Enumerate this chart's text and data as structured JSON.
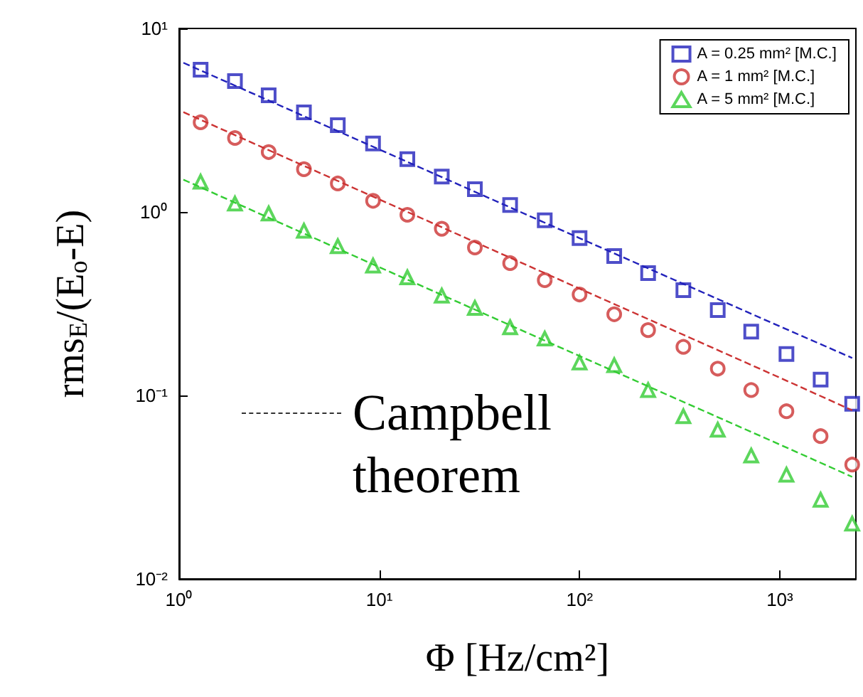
{
  "chart_data": {
    "type": "scatter",
    "xlabel": "Φ [Hz/cm²]",
    "ylabel": "rms$_{E}$/(E$_{o}$-E)",
    "log": "xy",
    "grid": false,
    "legend": "top right",
    "xlim": [
      1,
      2400
    ],
    "ylim": [
      0.01,
      10
    ],
    "xticks": [
      {
        "value": 1,
        "label": "10⁰"
      },
      {
        "value": 10,
        "label": "10¹"
      },
      {
        "value": 100,
        "label": "10²"
      },
      {
        "value": 1000,
        "label": "10³"
      }
    ],
    "yticks": [
      {
        "value": 0.01,
        "label": "10⁻²"
      },
      {
        "value": 0.1,
        "label": "10⁻¹"
      },
      {
        "value": 1,
        "label": "10⁰"
      },
      {
        "value": 10,
        "label": "10¹"
      }
    ],
    "x": [
      1.28,
      1.9,
      2.8,
      4.2,
      6.2,
      9.3,
      13.8,
      20.5,
      30,
      45,
      67,
      100,
      149,
      220,
      330,
      490,
      720,
      1080,
      1600,
      2300
    ],
    "series": [
      {
        "name": "A = 0.25 mm² [M.C.]",
        "color": "#2222bb",
        "marker": "square",
        "values": [
          5.96,
          5.17,
          4.32,
          3.49,
          2.97,
          2.36,
          1.94,
          1.56,
          1.33,
          1.09,
          0.9,
          0.72,
          0.575,
          0.464,
          0.375,
          0.292,
          0.223,
          0.168,
          0.122,
          0.09
        ]
      },
      {
        "name": "A = 1 mm² [M.C.]",
        "color": "#cc3333",
        "marker": "circle",
        "values": [
          3.08,
          2.53,
          2.12,
          1.71,
          1.43,
          1.15,
          0.965,
          0.81,
          0.64,
          0.526,
          0.425,
          0.355,
          0.277,
          0.227,
          0.184,
          0.14,
          0.107,
          0.082,
          0.06,
          0.042
        ]
      },
      {
        "name": "A = 5 mm² [M.C.]",
        "color": "#33cc33",
        "marker": "triangle",
        "values": [
          1.46,
          1.11,
          0.98,
          0.79,
          0.65,
          0.51,
          0.44,
          0.35,
          0.3,
          0.235,
          0.204,
          0.151,
          0.146,
          0.107,
          0.077,
          0.065,
          0.047,
          0.037,
          0.027,
          0.02
        ]
      },
      {
        "type": "line",
        "color": "#2222bb",
        "marker": "none",
        "line_style": "dashed",
        "x": [
          1.05,
          10,
          100,
          1000,
          2300
        ],
        "values": [
          6.5,
          2.19,
          0.72,
          0.238,
          0.16
        ]
      },
      {
        "type": "line",
        "color": "#cc3333",
        "marker": "none",
        "line_style": "dashed",
        "x": [
          1.05,
          10,
          100,
          1000,
          2300
        ],
        "values": [
          3.5,
          1.17,
          0.382,
          0.125,
          0.083
        ]
      },
      {
        "type": "line",
        "color": "#33cc33",
        "marker": "none",
        "line_style": "dashed",
        "x": [
          1.05,
          10,
          100,
          1000,
          2300
        ],
        "values": [
          1.5,
          0.5,
          0.164,
          0.054,
          0.036
        ]
      }
    ],
    "annotations": [
      "Campbell theorem"
    ]
  }
}
